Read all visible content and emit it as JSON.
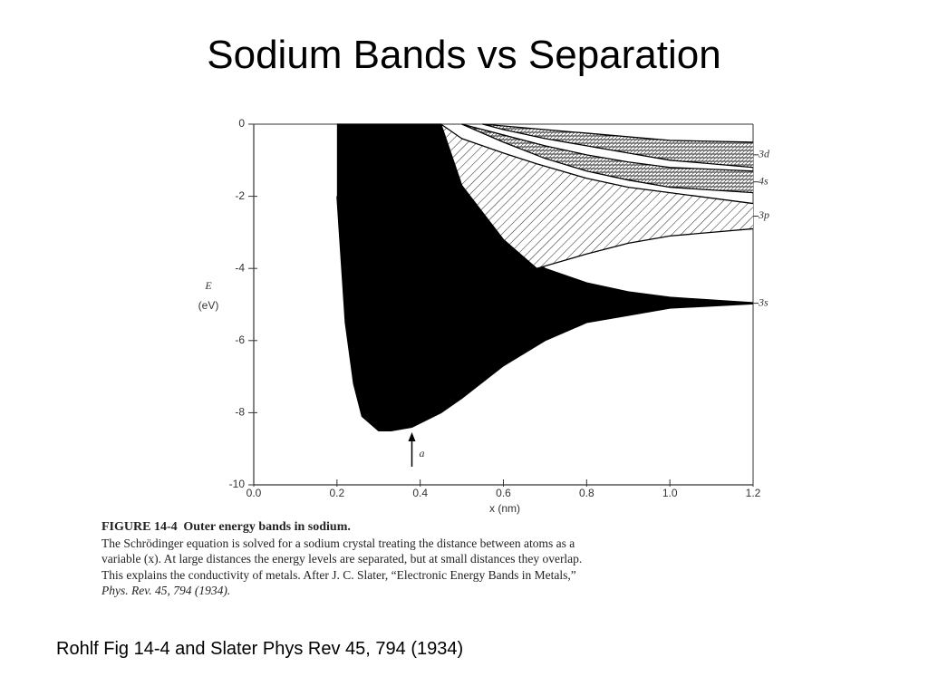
{
  "title": "Sodium Bands vs Separation",
  "chart_data": {
    "type": "band",
    "xlabel": "x (nm)",
    "ylabel": "E",
    "yunit": "(eV)",
    "xlim": [
      0,
      1.2
    ],
    "ylim": [
      -10,
      0
    ],
    "xticks": [
      {
        "value": 0,
        "label": "0.0"
      },
      0.2,
      0.4,
      0.6,
      0.8,
      {
        "value": 1,
        "label": "1.0"
      },
      1.2
    ],
    "yticks": [
      0,
      -2,
      -4,
      -6,
      -8,
      -10
    ],
    "series": [
      {
        "name": "3s",
        "color": "#000000",
        "pattern": "solid",
        "x": [
          0.2,
          0.22,
          0.24,
          0.26,
          0.3,
          0.33,
          0.38,
          0.45,
          0.5,
          0.6,
          0.7,
          0.8,
          0.9,
          1.0,
          1.2
        ],
        "upper": [
          0,
          0,
          0,
          0,
          0,
          0,
          0,
          0,
          -1.7,
          -3.2,
          -4.0,
          -4.4,
          -4.65,
          -4.8,
          -4.95
        ],
        "lower": [
          -2,
          -5.5,
          -7.2,
          -8.1,
          -8.5,
          -8.5,
          -8.4,
          -8.0,
          -7.6,
          -6.7,
          -6.0,
          -5.5,
          -5.3,
          -5.1,
          -4.98
        ]
      },
      {
        "name": "3p",
        "color": "#000000",
        "pattern": "hatch",
        "x": [
          0.45,
          0.5,
          0.6,
          0.68,
          0.8,
          0.9,
          1.0,
          1.2
        ],
        "upper": [
          0,
          -0.4,
          -0.8,
          -1.1,
          -1.5,
          -1.75,
          -1.9,
          -2.2
        ],
        "lower": [
          0,
          -1.7,
          -3.2,
          -4.0,
          -3.6,
          -3.3,
          -3.1,
          -2.9
        ]
      },
      {
        "name": "4s",
        "color": "#000000",
        "pattern": "cross-hatch",
        "x": [
          0.5,
          0.6,
          0.7,
          0.8,
          0.9,
          1.0,
          1.2
        ],
        "upper": [
          0,
          -0.3,
          -0.6,
          -0.85,
          -1.05,
          -1.2,
          -1.3
        ],
        "lower": [
          0,
          -0.5,
          -0.95,
          -1.3,
          -1.55,
          -1.75,
          -1.9
        ]
      },
      {
        "name": "3d",
        "color": "#000000",
        "pattern": "cross-hatch",
        "x": [
          0.55,
          0.6,
          0.7,
          0.8,
          0.9,
          1.0,
          1.2
        ],
        "upper": [
          0,
          -0.05,
          -0.15,
          -0.25,
          -0.35,
          -0.45,
          -0.5
        ],
        "lower": [
          0,
          -0.15,
          -0.4,
          -0.6,
          -0.8,
          -1.0,
          -1.2
        ]
      }
    ],
    "annotations": [
      {
        "text": "a",
        "x": 0.38
      }
    ]
  },
  "caption": {
    "label": "FIGURE 14-4",
    "title": "Outer energy bands in sodium.",
    "lines": [
      "The Schrödinger equation is solved for a sodium crystal treating the distance between atoms as a",
      "variable (x). At large distances the energy levels are separated, but at small distances they overlap.",
      "This explains the conductivity of metals. After J. C. Slater, “Electronic Energy Bands in Metals,”",
      "Phys. Rev. 45, 794 (1934)."
    ]
  },
  "footer": "Rohlf Fig 14-4 and Slater Phys Rev 45, 794 (1934)"
}
